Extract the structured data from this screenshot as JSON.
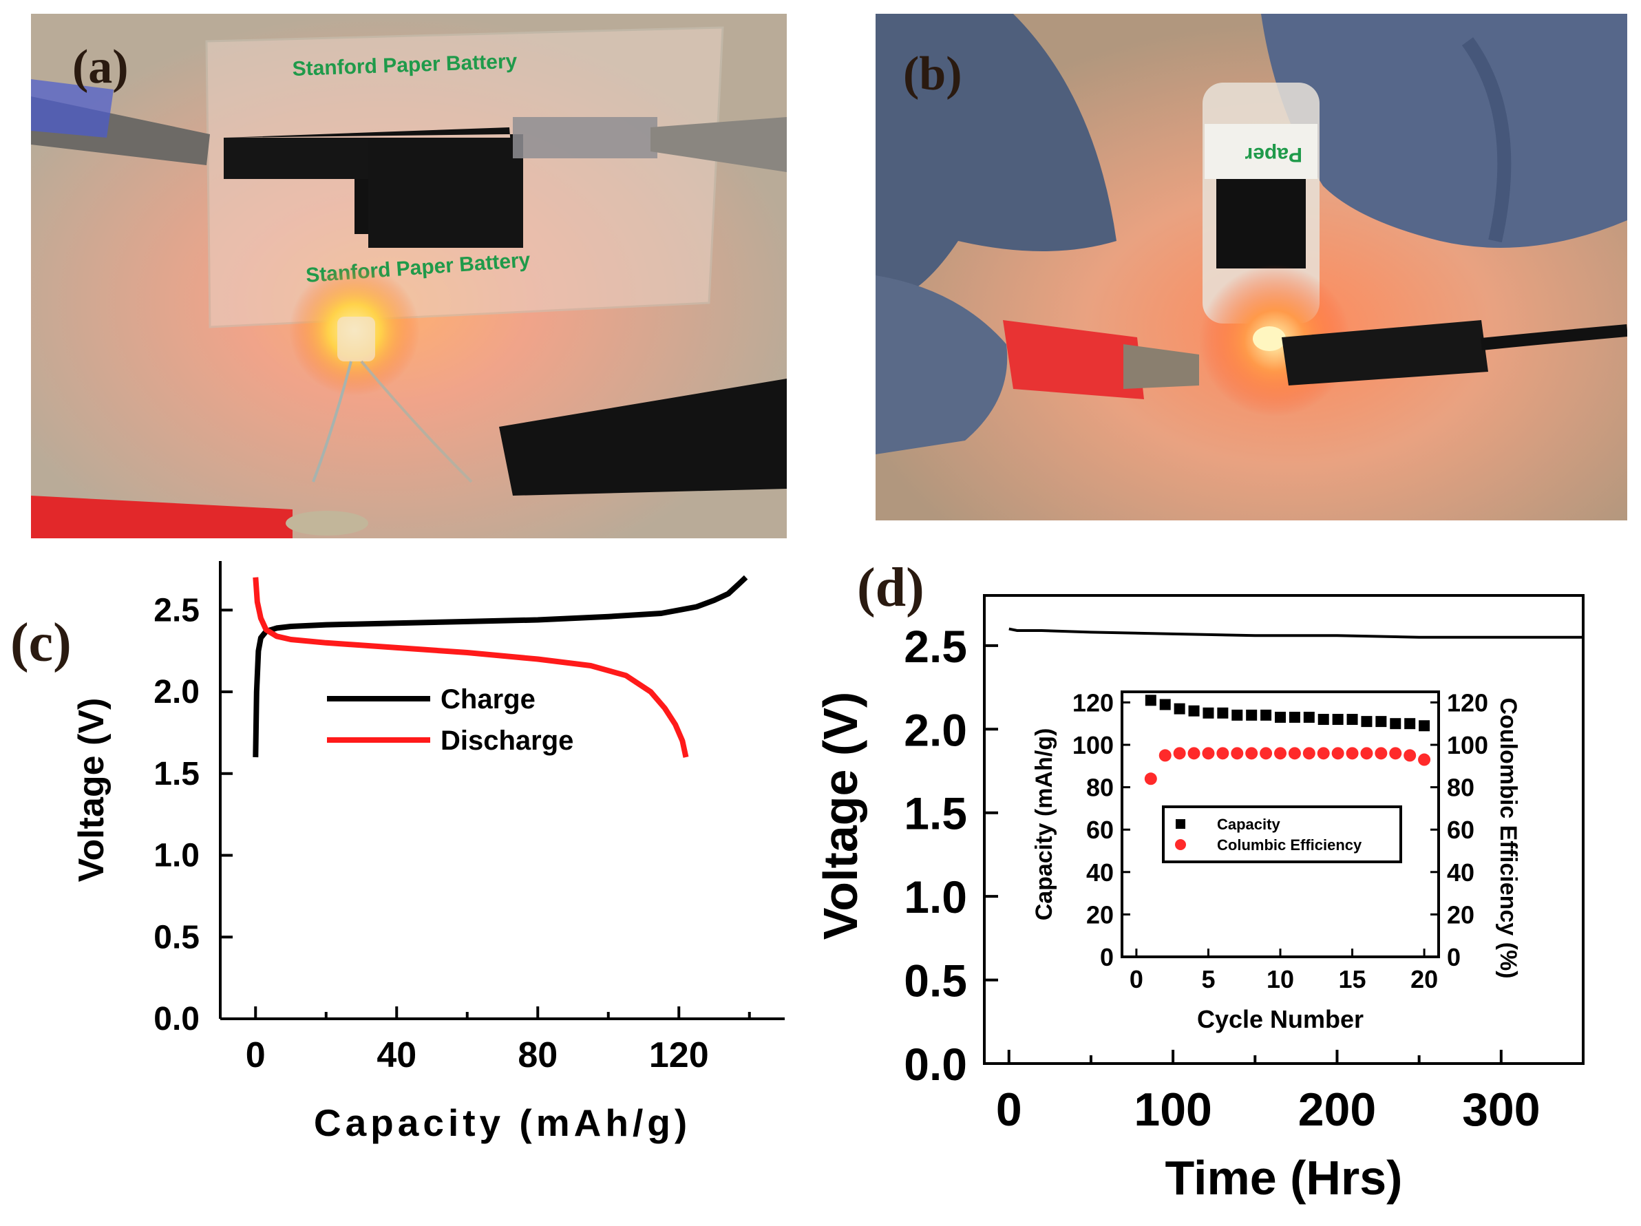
{
  "panels": {
    "a": {
      "label": "(a)",
      "photo_text": [
        "Stanford Paper Battery",
        "Stanford Paper Battery"
      ]
    },
    "b": {
      "label": "(b)",
      "photo_text": [
        "Paper"
      ]
    },
    "c": {
      "label": "(c)"
    },
    "d": {
      "label": "(d)"
    }
  },
  "chart_data": [
    {
      "panel": "c",
      "type": "line",
      "xlabel": "Capacity (mAh/g)",
      "ylabel": "Voltage (V)",
      "xlim": [
        -10,
        150
      ],
      "ylim": [
        0,
        2.8
      ],
      "xticks": [
        0,
        40,
        80,
        120
      ],
      "yticks": [
        0.0,
        0.5,
        1.0,
        1.5,
        2.0,
        2.5
      ],
      "grid": false,
      "legend_placement": "center",
      "series": [
        {
          "name": "Charge",
          "color": "#000000",
          "x": [
            0,
            0.3,
            0.8,
            1.5,
            3,
            6,
            10,
            20,
            40,
            60,
            80,
            100,
            115,
            125,
            130,
            134,
            137,
            139
          ],
          "y": [
            1.6,
            2.0,
            2.25,
            2.33,
            2.37,
            2.39,
            2.4,
            2.41,
            2.42,
            2.43,
            2.44,
            2.46,
            2.48,
            2.52,
            2.56,
            2.6,
            2.66,
            2.7
          ]
        },
        {
          "name": "Discharge",
          "color": "#ff1a1a",
          "x": [
            0,
            0.5,
            1.5,
            3,
            6,
            10,
            20,
            40,
            60,
            80,
            95,
            105,
            112,
            116,
            119,
            121,
            122
          ],
          "y": [
            2.7,
            2.55,
            2.45,
            2.38,
            2.34,
            2.32,
            2.3,
            2.27,
            2.24,
            2.2,
            2.16,
            2.1,
            2.0,
            1.9,
            1.8,
            1.7,
            1.6
          ]
        }
      ]
    },
    {
      "panel": "d",
      "type": "line",
      "xlabel": "Time (Hrs)",
      "ylabel": "Voltage (V)",
      "xlim": [
        -15,
        350
      ],
      "ylim": [
        0,
        2.8
      ],
      "xticks": [
        0,
        100,
        200,
        300
      ],
      "yticks": [
        0.0,
        0.5,
        1.0,
        1.5,
        2.0,
        2.5
      ],
      "grid": false,
      "series": [
        {
          "color": "#000000",
          "x": [
            0,
            5,
            20,
            50,
            100,
            150,
            200,
            250,
            300,
            350
          ],
          "y": [
            2.6,
            2.59,
            2.59,
            2.58,
            2.57,
            2.56,
            2.56,
            2.55,
            2.55,
            2.55
          ]
        }
      ],
      "inset": {
        "type": "scatter",
        "xlabel": "Cycle Number",
        "ylabel": "Capacity (mAh/g)",
        "y2label": "Coulombic Efficiency (%)",
        "xlim": [
          -1,
          21
        ],
        "ylim": [
          0,
          125
        ],
        "y2lim": [
          0,
          125
        ],
        "xticks": [
          0,
          5,
          10,
          15,
          20
        ],
        "yticks": [
          0,
          20,
          40,
          60,
          80,
          100,
          120
        ],
        "legend_placement": "center",
        "series": [
          {
            "name": "Capacity",
            "color": "#000000",
            "marker": "square",
            "axis": "left",
            "x": [
              1,
              2,
              3,
              4,
              5,
              6,
              7,
              8,
              9,
              10,
              11,
              12,
              13,
              14,
              15,
              16,
              17,
              18,
              19,
              20
            ],
            "y": [
              121,
              119,
              117,
              116,
              115,
              115,
              114,
              114,
              114,
              113,
              113,
              113,
              112,
              112,
              112,
              111,
              111,
              110,
              110,
              109
            ]
          },
          {
            "name": "Columbic Efficiency",
            "color": "#ff2a2a",
            "marker": "circle",
            "axis": "right",
            "x": [
              1,
              2,
              3,
              4,
              5,
              6,
              7,
              8,
              9,
              10,
              11,
              12,
              13,
              14,
              15,
              16,
              17,
              18,
              19,
              20
            ],
            "y": [
              84,
              95,
              96,
              96,
              96,
              96,
              96,
              96,
              96,
              96,
              96,
              96,
              96,
              96,
              96,
              96,
              96,
              96,
              95,
              93
            ]
          }
        ]
      }
    }
  ]
}
